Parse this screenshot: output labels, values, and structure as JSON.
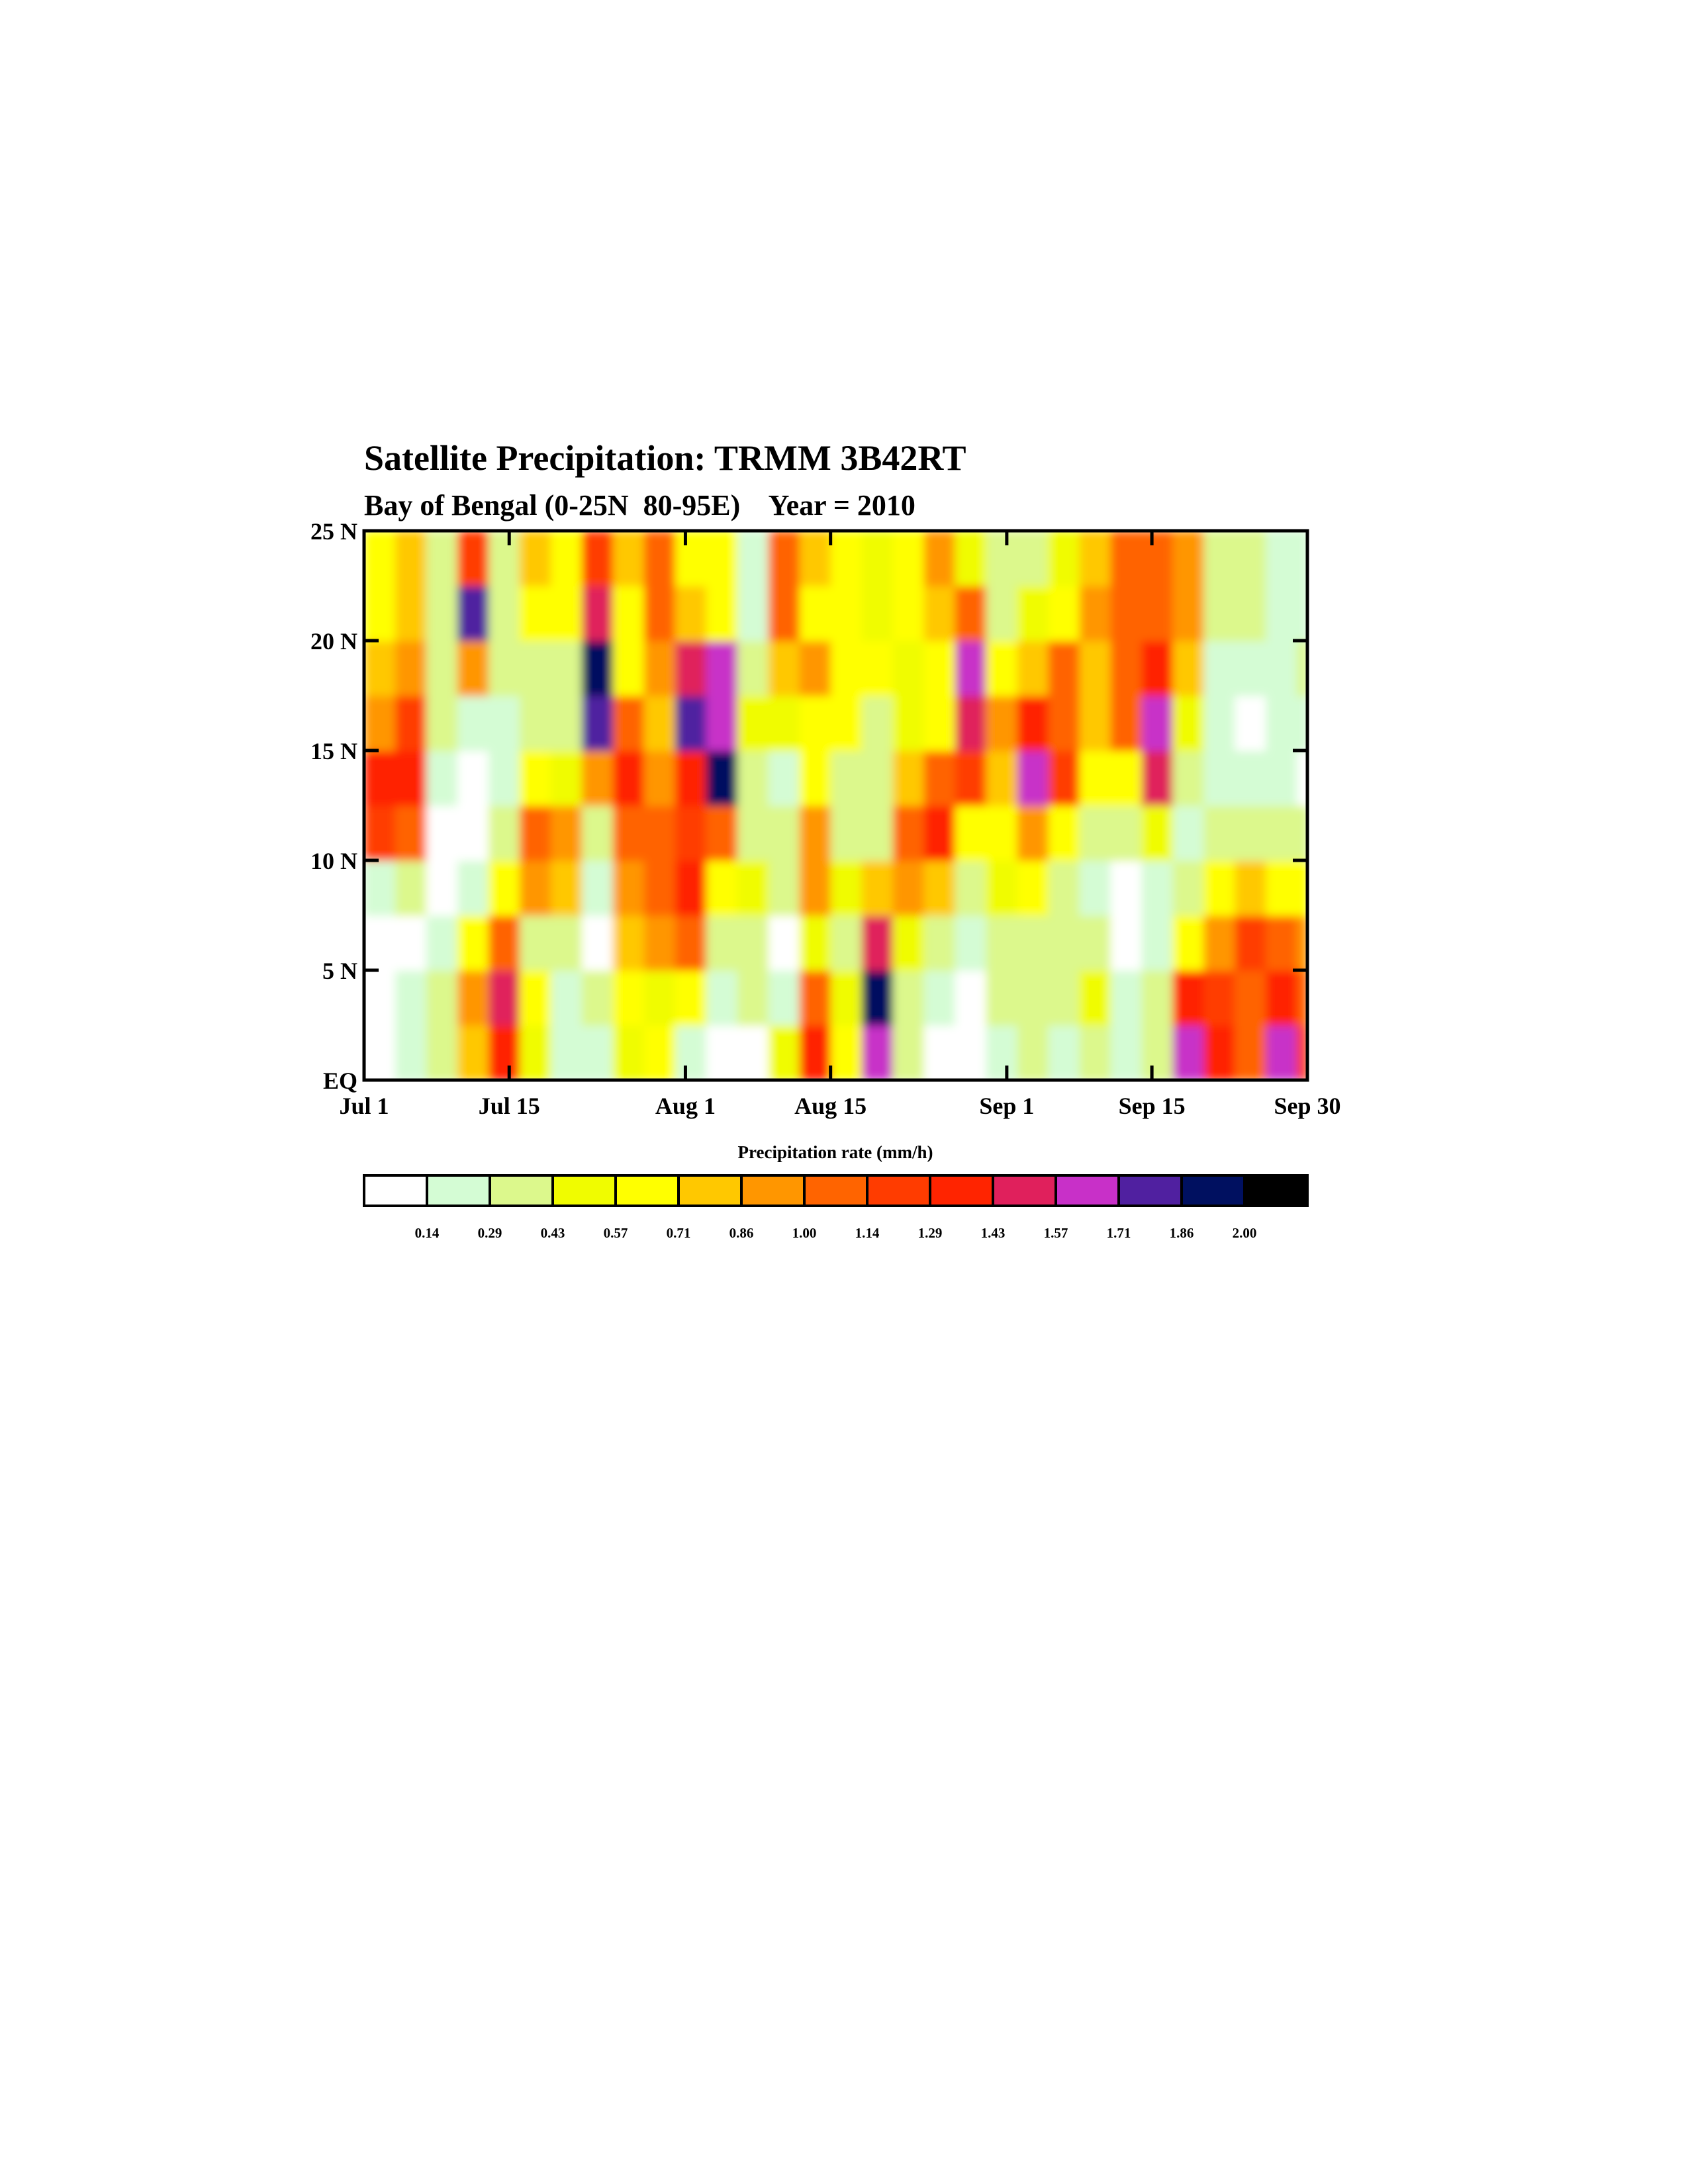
{
  "chart_data": {
    "type": "heatmap",
    "title": "Satellite Precipitation: TRMM 3B42RT",
    "subtitle": "Bay of Bengal (0-25N  80-95E)    Year = 2010",
    "xlabel": "",
    "ylabel": "",
    "x_unit": "days since Jul 1",
    "xlim": [
      0,
      91
    ],
    "ylim": [
      0,
      25
    ],
    "x_ticks": [
      {
        "value": 0,
        "label": "Jul 1"
      },
      {
        "value": 14,
        "label": "Jul 15"
      },
      {
        "value": 31,
        "label": "Aug 1"
      },
      {
        "value": 45,
        "label": "Aug 15"
      },
      {
        "value": 62,
        "label": "Sep 1"
      },
      {
        "value": 76,
        "label": "Sep 15"
      },
      {
        "value": 91,
        "label": "Sep 30"
      }
    ],
    "y_ticks": [
      {
        "value": 0,
        "label": "EQ"
      },
      {
        "value": 5,
        "label": "5 N"
      },
      {
        "value": 10,
        "label": "10 N"
      },
      {
        "value": 15,
        "label": "15 N"
      },
      {
        "value": 20,
        "label": "20 N"
      },
      {
        "value": 25,
        "label": "25 N"
      }
    ],
    "grid": false,
    "cell_days": 3,
    "cell_lat": 2.5,
    "values_by_column_south_to_north": [
      [
        0.1,
        0.1,
        0.1,
        0.2,
        1.2,
        1.3,
        0.9,
        0.8,
        0.7,
        0.6
      ],
      [
        0.2,
        0.2,
        0.1,
        0.3,
        1.1,
        1.3,
        1.2,
        0.9,
        0.8,
        0.8
      ],
      [
        0.4,
        0.3,
        0.2,
        0.1,
        0.1,
        0.2,
        0.3,
        0.3,
        0.3,
        0.3
      ],
      [
        0.8,
        0.9,
        0.6,
        0.2,
        0.1,
        0.1,
        0.2,
        0.9,
        1.8,
        1.2
      ],
      [
        1.3,
        1.5,
        1.1,
        0.7,
        0.3,
        0.2,
        0.2,
        0.3,
        0.3,
        0.3
      ],
      [
        0.5,
        0.6,
        0.3,
        0.9,
        1.0,
        0.6,
        0.3,
        0.4,
        0.6,
        0.8
      ],
      [
        0.2,
        0.2,
        0.3,
        0.8,
        0.9,
        0.5,
        0.3,
        0.4,
        0.6,
        0.7
      ],
      [
        0.2,
        0.3,
        0.1,
        0.2,
        0.4,
        0.9,
        1.8,
        1.9,
        1.5,
        1.2
      ],
      [
        0.5,
        0.6,
        0.8,
        0.9,
        1.1,
        1.3,
        1.1,
        0.7,
        0.6,
        0.8
      ],
      [
        0.7,
        0.5,
        0.9,
        1.0,
        1.1,
        0.9,
        0.8,
        0.9,
        1.0,
        1.1
      ],
      [
        0.2,
        0.6,
        1.1,
        1.3,
        1.2,
        1.4,
        1.8,
        1.5,
        0.8,
        0.6
      ],
      [
        0.1,
        0.2,
        0.3,
        0.6,
        1.0,
        1.9,
        1.7,
        1.6,
        0.7,
        0.6
      ],
      [
        0.1,
        0.3,
        0.4,
        0.5,
        0.4,
        0.4,
        0.5,
        0.3,
        0.2,
        0.2
      ],
      [
        0.5,
        0.2,
        0.1,
        0.3,
        0.3,
        0.2,
        0.5,
        0.8,
        1.0,
        1.1
      ],
      [
        1.3,
        1.0,
        0.5,
        0.9,
        0.9,
        0.6,
        0.7,
        0.9,
        0.7,
        0.8
      ],
      [
        0.6,
        0.5,
        0.4,
        0.5,
        0.3,
        0.4,
        0.6,
        0.7,
        0.6,
        0.7
      ],
      [
        1.7,
        1.9,
        1.5,
        0.8,
        0.3,
        0.3,
        0.4,
        0.6,
        0.5,
        0.5
      ],
      [
        0.3,
        0.4,
        0.5,
        0.9,
        1.0,
        0.8,
        0.5,
        0.5,
        0.6,
        0.6
      ],
      [
        0.1,
        0.2,
        0.3,
        0.8,
        1.3,
        1.1,
        0.6,
        0.7,
        0.8,
        0.9
      ],
      [
        0.1,
        0.1,
        0.2,
        0.3,
        0.6,
        1.2,
        1.5,
        1.6,
        1.1,
        0.5
      ],
      [
        0.2,
        0.4,
        0.4,
        0.5,
        0.6,
        0.8,
        0.9,
        0.6,
        0.3,
        0.3
      ],
      [
        0.3,
        0.3,
        0.4,
        0.6,
        0.9,
        1.7,
        1.3,
        0.8,
        0.5,
        0.4
      ],
      [
        0.2,
        0.3,
        0.3,
        0.4,
        0.6,
        1.2,
        1.1,
        1.0,
        0.6,
        0.5
      ],
      [
        0.4,
        0.5,
        0.3,
        0.2,
        0.4,
        0.6,
        0.8,
        0.8,
        0.9,
        0.8
      ],
      [
        0.2,
        0.2,
        0.1,
        0.1,
        0.3,
        0.6,
        1.0,
        1.0,
        1.1,
        1.0
      ],
      [
        0.3,
        0.3,
        0.2,
        0.2,
        0.5,
        1.5,
        1.7,
        1.4,
        1.1,
        1.0
      ],
      [
        1.6,
        1.3,
        0.7,
        0.3,
        0.2,
        0.3,
        0.5,
        0.8,
        0.9,
        0.9
      ],
      [
        1.3,
        1.2,
        0.9,
        0.6,
        0.3,
        0.2,
        0.2,
        0.2,
        0.3,
        0.3
      ],
      [
        1.0,
        1.1,
        1.2,
        0.8,
        0.4,
        0.2,
        0.1,
        0.2,
        0.3,
        0.3
      ],
      [
        1.6,
        1.4,
        1.1,
        0.7,
        0.4,
        0.2,
        0.2,
        0.2,
        0.2,
        0.2
      ],
      [
        1.2,
        1.0,
        0.9,
        0.6,
        0.3,
        0.1,
        0.2,
        0.4,
        0.2,
        0.2
      ]
    ],
    "colorbar": {
      "title": "Precipitation rate (mm/h)",
      "levels": [
        "0.14",
        "0.29",
        "0.43",
        "0.57",
        "0.71",
        "0.86",
        "1.00",
        "1.14",
        "1.29",
        "1.43",
        "1.57",
        "1.71",
        "1.86",
        "2.00"
      ],
      "colors": [
        "#ffffff",
        "#d4fcd4",
        "#dcf88c",
        "#f0fc00",
        "#ffff00",
        "#ffc800",
        "#ff9600",
        "#ff6400",
        "#ff3c00",
        "#ff2400",
        "#e0205c",
        "#c830c8",
        "#5020a0",
        "#001060",
        "#000000"
      ]
    }
  }
}
